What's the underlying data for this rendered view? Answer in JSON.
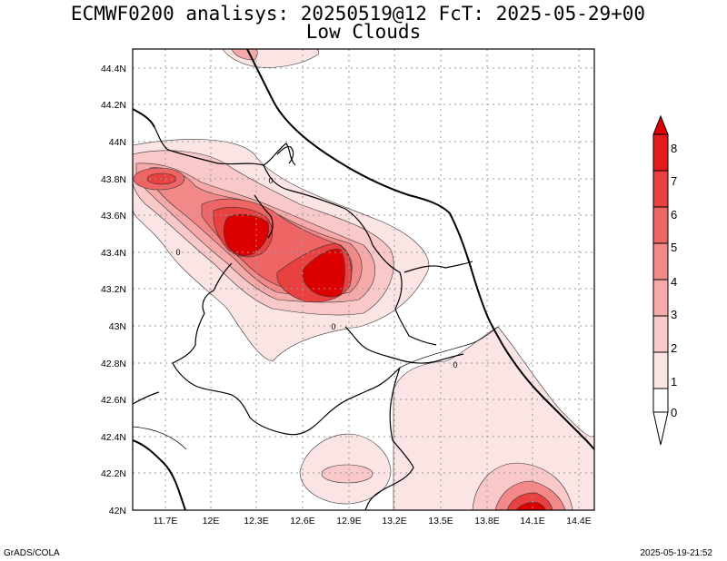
{
  "title": "ECMWF0200 analisys: 20250519@12 FcT: 2025-05-29+00",
  "subtitle": "Low Clouds",
  "footer_left": "GrADS/COLA",
  "footer_right": "2025-05-19-21:52",
  "contour_label": "0",
  "lat_ticks": [
    "44.4N",
    "44.2N",
    "44N",
    "43.8N",
    "43.6N",
    "43.4N",
    "43.2N",
    "43N",
    "42.8N",
    "42.6N",
    "42.4N",
    "42.2N",
    "42N"
  ],
  "lon_ticks": [
    "11.7E",
    "12E",
    "12.3E",
    "12.6E",
    "12.9E",
    "13.2E",
    "13.5E",
    "13.8E",
    "14.1E",
    "14.4E"
  ],
  "colorbar": {
    "labels": [
      "0",
      "1",
      "2",
      "3",
      "4",
      "5",
      "6",
      "7",
      "8"
    ],
    "colors": [
      "#ffffff",
      "#fbe4e4",
      "#f9c9c9",
      "#f6a9a9",
      "#f28888",
      "#ee6565",
      "#e94040",
      "#e21b1b",
      "#dd0000"
    ]
  }
}
